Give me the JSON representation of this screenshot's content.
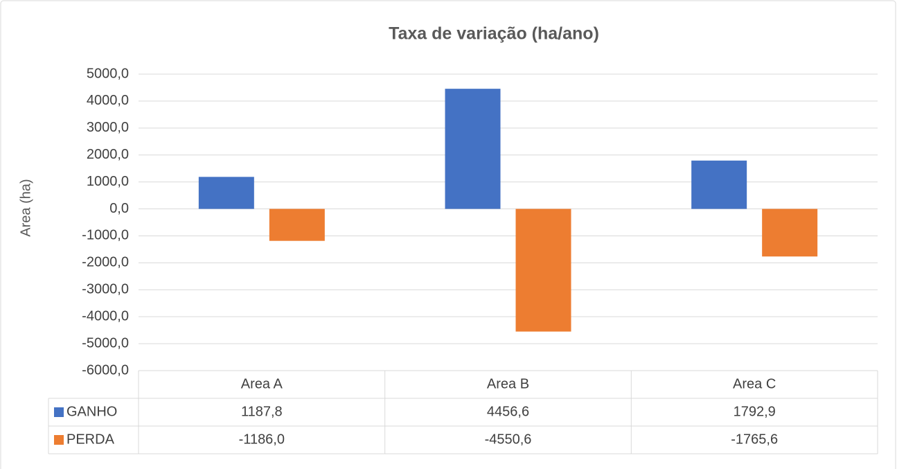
{
  "chart_data": {
    "type": "bar",
    "title": "Taxa de variação (ha/ano)",
    "y_label": "Area (ha)",
    "categories": [
      "Area A",
      "Area B",
      "Area C"
    ],
    "series": [
      {
        "name": "GANHO",
        "color": "#4472c4",
        "values": [
          1187.8,
          4456.6,
          1792.9
        ],
        "value_labels": [
          "1187,8",
          "4456,6",
          "1792,9"
        ]
      },
      {
        "name": "PERDA",
        "color": "#ed7d31",
        "values": [
          -1186.0,
          -4550.6,
          -1765.6
        ],
        "value_labels": [
          "-1186,0",
          "-4550,6",
          "-1765,6"
        ]
      }
    ],
    "ylim": [
      -6000,
      5000
    ],
    "yticks": [
      {
        "value": 5000,
        "label": "5000,0"
      },
      {
        "value": 4000,
        "label": "4000,0"
      },
      {
        "value": 3000,
        "label": "3000,0"
      },
      {
        "value": 2000,
        "label": "2000,0"
      },
      {
        "value": 1000,
        "label": "1000,0"
      },
      {
        "value": 0,
        "label": "0,0"
      },
      {
        "value": -1000,
        "label": "-1000,0"
      },
      {
        "value": -2000,
        "label": "-2000,0"
      },
      {
        "value": -3000,
        "label": "-3000,0"
      },
      {
        "value": -4000,
        "label": "-4000,0"
      },
      {
        "value": -5000,
        "label": "-5000,0"
      },
      {
        "value": -6000,
        "label": "-6000,0"
      }
    ],
    "grid": true
  }
}
